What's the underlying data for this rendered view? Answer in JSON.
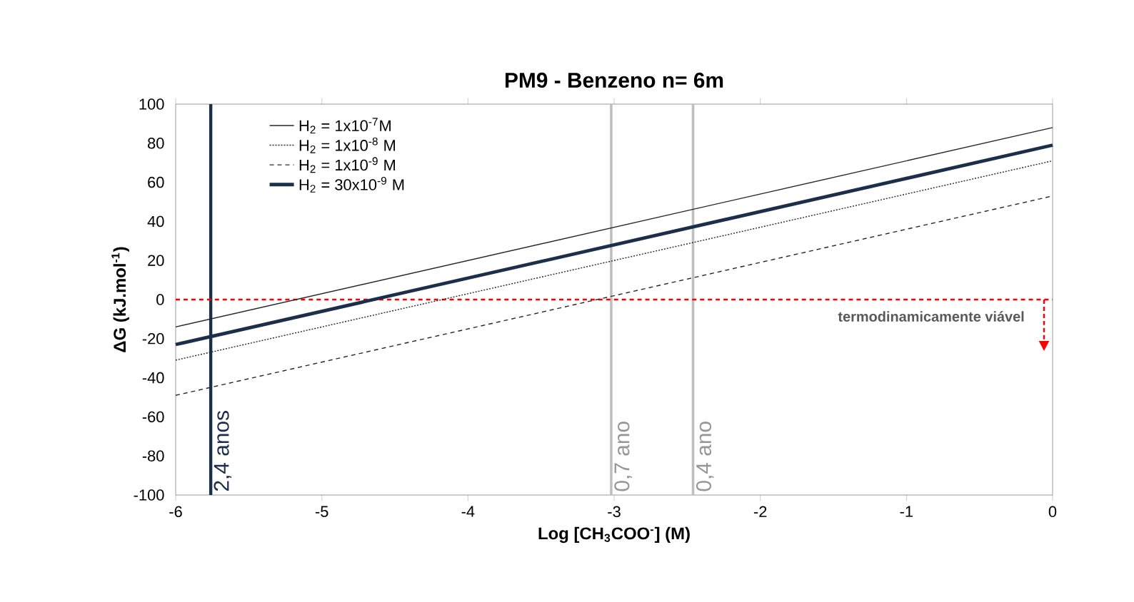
{
  "chart_data": {
    "type": "line",
    "title": "**PM9 - Benzeno n= 6m**",
    "xlabel": "**Log  [CH$_{3}$COO$^{-}$] (M)**",
    "ylabel": "**ΔG (kJ.mol$^{-1}$)**",
    "x": [
      -6,
      0
    ],
    "series": [
      {
        "name": "H$_{2}$ = 1x10$^{-7}$M",
        "color": "#262626",
        "line_style": "solid",
        "values": [
          -14,
          88
        ]
      },
      {
        "name": "H$_{2}$ = 1x10$^{-8}$ M",
        "color": "#262626",
        "line_style": "dotted",
        "values": [
          -31,
          71
        ]
      },
      {
        "name": "H$_{2}$ = 1x10$^{-9}$ M",
        "color": "#262626",
        "line_style": "dashed",
        "values": [
          -49,
          53
        ]
      },
      {
        "name": "H$_{2}$ = 30x10$^{-9}$ M",
        "color": "#1b2f4b",
        "line_style": "solid",
        "values": [
          -23,
          79
        ]
      }
    ],
    "xlim": [
      -6,
      0
    ],
    "xticks": [
      -6,
      -5,
      -4,
      -3,
      -2,
      -1,
      0
    ],
    "ylim": [
      -100,
      100
    ],
    "yticks": [
      -100,
      -80,
      -60,
      -40,
      -20,
      0,
      20,
      40,
      60,
      80,
      100
    ],
    "ref_lines": [
      {
        "axis": "x",
        "value": -5.76,
        "label": "2,4 anos",
        "color": "#1b2f4b",
        "line_style": "solid"
      },
      {
        "axis": "x",
        "value": -3.02,
        "label": "0,7 ano",
        "color": "#bfbfbf",
        "line_style": "solid"
      },
      {
        "axis": "x",
        "value": -2.46,
        "label": "0,4 ano",
        "color": "#bfbfbf",
        "line_style": "solid"
      },
      {
        "axis": "y",
        "value": 0,
        "color": "#ff0000",
        "line_style": "dashed"
      }
    ],
    "annotations": [
      "**termodinamicamente viável**"
    ],
    "grid": false,
    "legend": "top left",
    "marker": "none"
  }
}
